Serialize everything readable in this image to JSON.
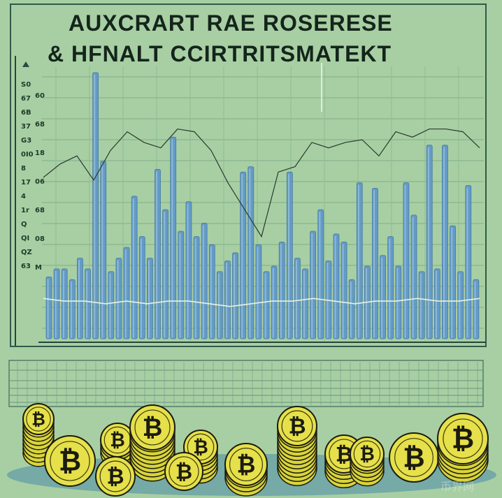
{
  "chart_data": {
    "type": "bar",
    "title": [
      "AUXCRART RAE ROSERESE",
      "& HFNALT CCIRTRITSMATEKT"
    ],
    "xlabel": "",
    "ylabel": "",
    "ylim": [
      0,
      100
    ],
    "grid": true,
    "y_tick_labels_left": [
      "S0",
      "67",
      "6B",
      "37",
      "G3",
      "0I0",
      "8",
      "17",
      "4",
      "1r",
      "Q",
      "QI",
      "QZ",
      "63"
    ],
    "y_tick_labels_right": [
      "60",
      "68",
      "18",
      "06",
      "68",
      "08",
      "M"
    ],
    "bar_color": "#5f97c9",
    "values": [
      23,
      26,
      26,
      22,
      30,
      26,
      99,
      66,
      25,
      30,
      34,
      53,
      38,
      30,
      63,
      48,
      75,
      40,
      51,
      38,
      43,
      35,
      25,
      29,
      32,
      62,
      64,
      35,
      25,
      27,
      36,
      62,
      30,
      26,
      40,
      48,
      29,
      39,
      36,
      22,
      58,
      27,
      56,
      31,
      38,
      27,
      58,
      46,
      25,
      72,
      26,
      72,
      42,
      25,
      57,
      22
    ],
    "series": [
      {
        "type": "line",
        "color": "#2a3a30",
        "values": [
          60,
          65,
          68,
          59,
          70,
          77,
          73,
          71,
          78,
          77,
          70,
          58,
          48,
          38,
          62,
          64,
          73,
          71,
          73,
          74,
          68,
          77,
          75,
          78,
          78,
          77,
          71
        ]
      },
      {
        "type": "line",
        "color": "#e8f2e4",
        "values": [
          15,
          14,
          14,
          13,
          14,
          13,
          14,
          14,
          13,
          12,
          13,
          14,
          14,
          15,
          14,
          13,
          14,
          14,
          15,
          14,
          14,
          15
        ]
      }
    ]
  },
  "colors": {
    "background": "#a8cfa3",
    "coin": "#e6e04a",
    "coin_edge": "#1b1b10",
    "shadow": "#5f9aa6"
  },
  "watermark": "币界网"
}
